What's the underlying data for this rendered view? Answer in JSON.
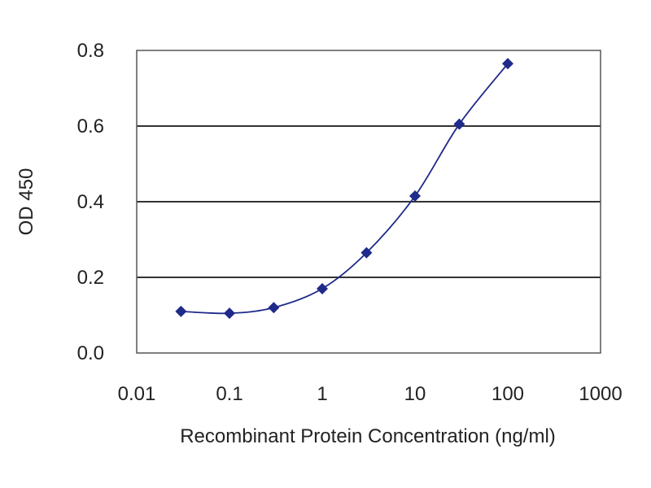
{
  "chart_data": {
    "type": "line",
    "title": "",
    "xlabel": "Recombinant Protein Concentration (ng/ml)",
    "ylabel": "OD 450",
    "x_scale": "log",
    "xlim": [
      0.01,
      1000
    ],
    "ylim": [
      0,
      0.8
    ],
    "x_ticks": [
      "0.01",
      "0.1",
      "1",
      "10",
      "100",
      "1000"
    ],
    "y_ticks": [
      "0.0",
      "0.2",
      "0.4",
      "0.6",
      "0.8"
    ],
    "grid": "horizontal",
    "legend": "none",
    "series": [
      {
        "x": [
          0.03,
          0.1,
          0.3,
          1,
          3,
          10,
          30,
          100
        ],
        "y": [
          0.11,
          0.105,
          0.12,
          0.17,
          0.265,
          0.415,
          0.605,
          0.765
        ]
      }
    ],
    "colors": {
      "series": "#1f2a8a",
      "grid": "#333333",
      "frame": "#555555"
    }
  }
}
